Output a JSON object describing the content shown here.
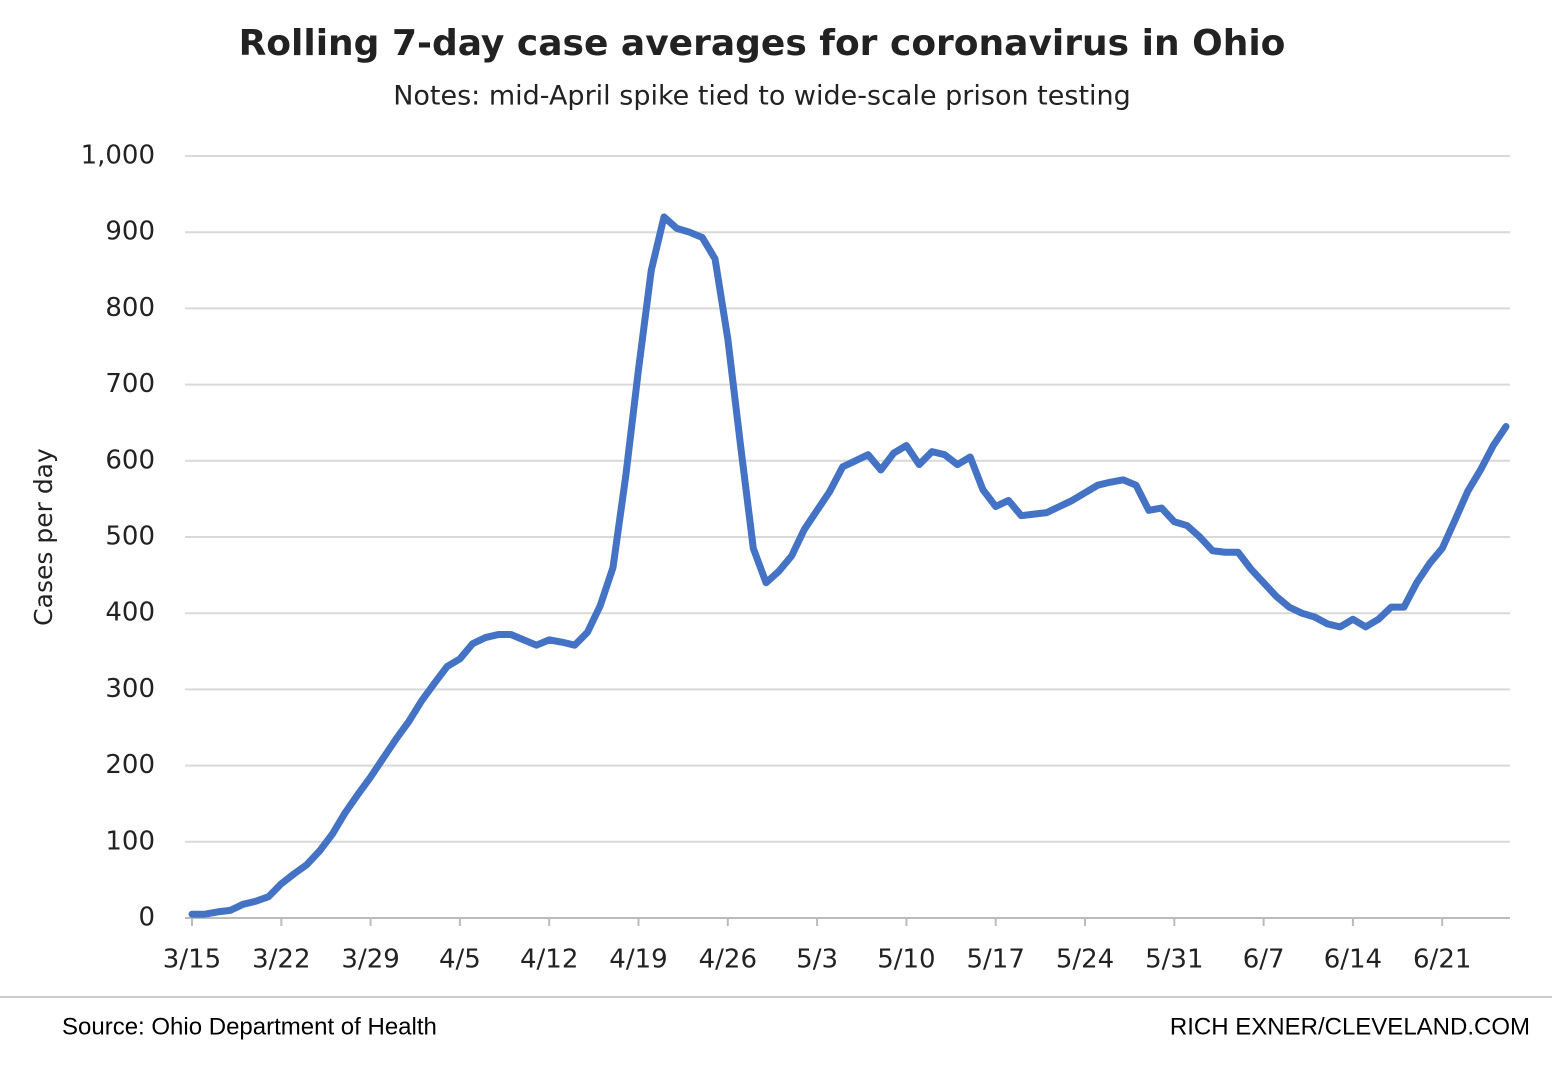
{
  "chart_data": {
    "type": "line",
    "title": "Rolling 7-day case averages for coronavirus in Ohio",
    "subtitle": "Notes: mid-April spike tied to wide-scale prison testing",
    "y_label": "Cases per day",
    "source": "Source: Ohio Department of Health",
    "credit": "RICH EXNER/CLEVELAND.COM",
    "categories": [
      "3/15",
      null,
      null,
      null,
      null,
      null,
      null,
      "3/22",
      null,
      null,
      null,
      null,
      null,
      null,
      "3/29",
      null,
      null,
      null,
      null,
      null,
      null,
      "4/5",
      null,
      null,
      null,
      null,
      null,
      null,
      "4/12",
      null,
      null,
      null,
      null,
      null,
      null,
      "4/19",
      null,
      null,
      null,
      null,
      null,
      null,
      "4/26",
      null,
      null,
      null,
      null,
      null,
      null,
      "5/3",
      null,
      null,
      null,
      null,
      null,
      null,
      "5/10",
      null,
      null,
      null,
      null,
      null,
      null,
      "5/17",
      null,
      null,
      null,
      null,
      null,
      null,
      "5/24",
      null,
      null,
      null,
      null,
      null,
      null,
      "5/31",
      null,
      null,
      null,
      null,
      null,
      null,
      "6/7",
      null,
      null,
      null,
      null,
      null,
      null,
      "6/14",
      null,
      null,
      null,
      null,
      null,
      null,
      "6/21",
      null,
      null,
      null,
      null,
      null
    ],
    "series": [
      {
        "name": "Cases per day",
        "color": "#4472c4",
        "values": [
          5,
          5,
          8,
          10,
          18,
          22,
          28,
          45,
          58,
          70,
          88,
          110,
          138,
          162,
          185,
          210,
          235,
          258,
          285,
          308,
          330,
          340,
          360,
          368,
          372,
          372,
          365,
          358,
          365,
          362,
          358,
          375,
          410,
          460,
          580,
          720,
          850,
          920,
          905,
          900,
          893,
          865,
          760,
          620,
          485,
          440,
          455,
          475,
          510,
          535,
          560,
          592,
          600,
          608,
          588,
          610,
          620,
          595,
          612,
          608,
          595,
          605,
          562,
          540,
          548,
          528,
          530,
          532,
          540,
          548,
          558,
          568,
          572,
          575,
          568,
          535,
          538,
          520,
          515,
          500,
          482,
          480,
          480,
          458,
          440,
          422,
          408,
          400,
          395,
          386,
          382,
          392,
          382,
          392,
          408,
          408,
          440,
          465,
          485,
          522,
          560,
          588,
          620,
          645
        ]
      }
    ],
    "ylim": [
      0,
      1000
    ],
    "yticks": [
      0,
      100,
      200,
      300,
      400,
      500,
      600,
      700,
      800,
      900,
      {
        "value": 1000,
        "label": "1,000"
      }
    ],
    "grid": true
  }
}
